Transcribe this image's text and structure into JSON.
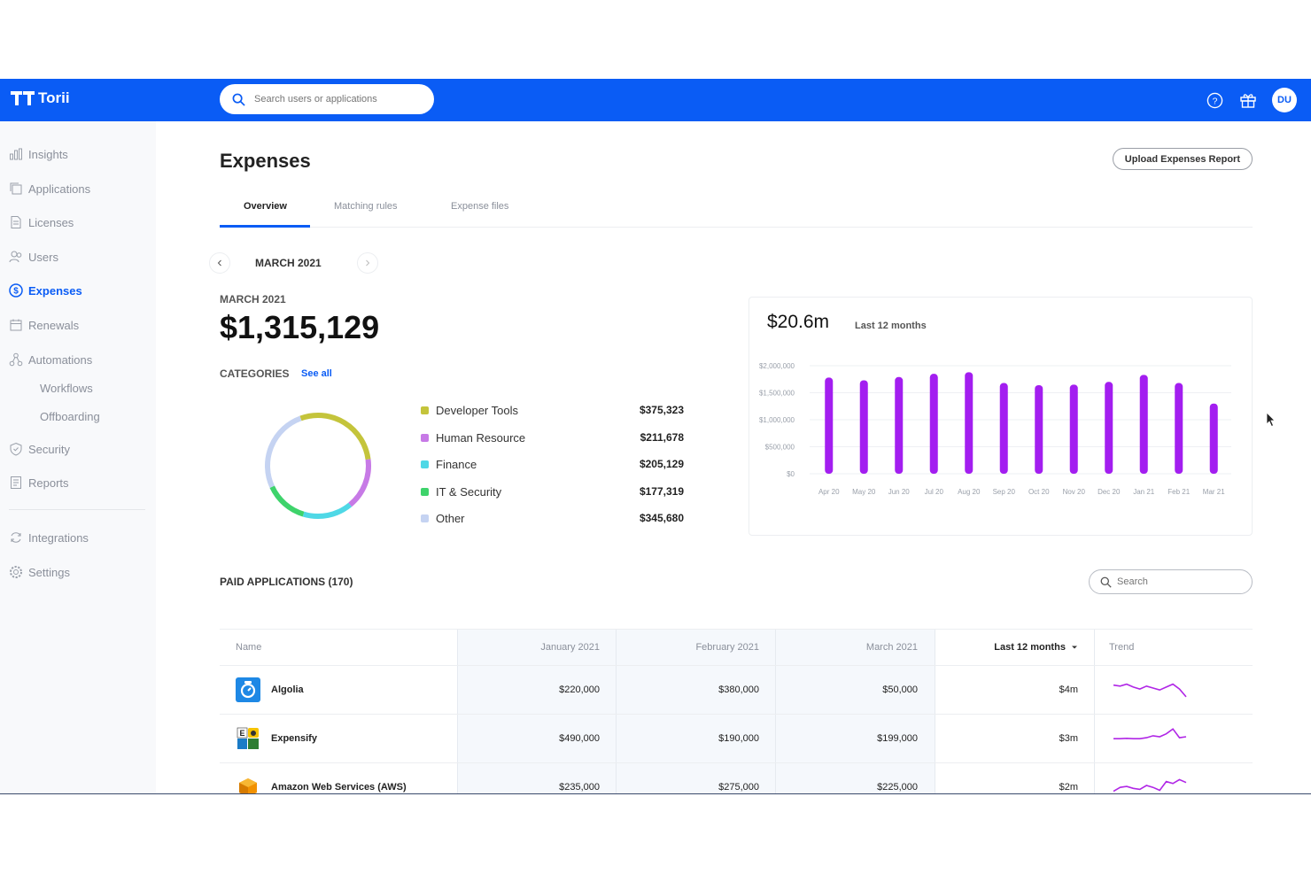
{
  "brand": {
    "name": "Torii"
  },
  "search": {
    "placeholder": "Search users or applications"
  },
  "user": {
    "initials": "DU"
  },
  "sidebar": {
    "items": [
      {
        "label": "Insights",
        "icon": "bar-chart-icon"
      },
      {
        "label": "Applications",
        "icon": "copy-icon"
      },
      {
        "label": "Licenses",
        "icon": "document-icon"
      },
      {
        "label": "Users",
        "icon": "users-icon"
      },
      {
        "label": "Expenses",
        "icon": "dollar-icon",
        "active": true
      },
      {
        "label": "Renewals",
        "icon": "calendar-icon"
      },
      {
        "label": "Automations",
        "icon": "workflow-icon"
      },
      {
        "label": "Workflows",
        "sub": true
      },
      {
        "label": "Offboarding",
        "sub": true
      },
      {
        "label": "Security",
        "icon": "shield-icon"
      },
      {
        "label": "Reports",
        "icon": "report-icon"
      },
      {
        "label": "Integrations",
        "icon": "sync-icon"
      },
      {
        "label": "Settings",
        "icon": "gear-icon"
      }
    ]
  },
  "page": {
    "title": "Expenses",
    "upload_label": "Upload Expenses Report",
    "tabs": [
      "Overview",
      "Matching rules",
      "Expense files"
    ],
    "month": "MARCH 2021"
  },
  "summary": {
    "label": "MARCH 2021",
    "total": "$1,315,129",
    "categories_label": "CATEGORIES",
    "see_all": "See all"
  },
  "categories": [
    {
      "name": "Developer Tools",
      "amount": "$375,323",
      "value": 375323,
      "color": "#c4c43b"
    },
    {
      "name": "Human Resource",
      "amount": "$211,678",
      "value": 211678,
      "color": "#c77ae6"
    },
    {
      "name": "Finance",
      "amount": "$205,129",
      "value": 205129,
      "color": "#4fd8e6"
    },
    {
      "name": "IT & Security",
      "amount": "$177,319",
      "value": 177319,
      "color": "#3ed36b"
    },
    {
      "name": "Other",
      "amount": "$345,680",
      "value": 345680,
      "color": "#c5d3f2"
    }
  ],
  "chart": {
    "total": "$20.6m",
    "subtitle": "Last 12 months"
  },
  "chart_data": {
    "type": "bar",
    "categories": [
      "Apr 20",
      "May 20",
      "Jun 20",
      "Jul 20",
      "Aug 20",
      "Sep 20",
      "Oct 20",
      "Nov 20",
      "Dec 20",
      "Jan 21",
      "Feb 21",
      "Mar 21"
    ],
    "values": [
      1780000,
      1730000,
      1790000,
      1850000,
      1880000,
      1680000,
      1640000,
      1650000,
      1700000,
      1830000,
      1680000,
      1300000
    ],
    "ylim": [
      0,
      2000000
    ],
    "yticks": [
      {
        "value": 2000000,
        "label": "$2,000,000"
      },
      {
        "value": 1500000,
        "label": "$1,500,000"
      },
      {
        "value": 1000000,
        "label": "$1,000,000"
      },
      {
        "value": 500000,
        "label": "$500,000"
      },
      {
        "value": 0,
        "label": "$0"
      }
    ],
    "color": "#a31ef0",
    "grid": true
  },
  "paid": {
    "title": "PAID APPLICATIONS (170)",
    "search_placeholder": "Search",
    "columns": [
      "Name",
      "January 2021",
      "February 2021",
      "March 2021",
      "Last 12 months",
      "Trend"
    ],
    "rows": [
      {
        "name": "Algolia",
        "jan": "$220,000",
        "feb": "$380,000",
        "mar": "$50,000",
        "total": "$4m",
        "icon": "algolia-icon",
        "trend": [
          0.35,
          0.4,
          0.3,
          0.45,
          0.55,
          0.4,
          0.5,
          0.6,
          0.45,
          0.3,
          0.55,
          0.95
        ]
      },
      {
        "name": "Expensify",
        "jan": "$490,000",
        "feb": "$190,000",
        "mar": "$199,000",
        "total": "$3m",
        "icon": "expensify-icon",
        "trend": [
          0.6,
          0.6,
          0.58,
          0.6,
          0.6,
          0.55,
          0.45,
          0.5,
          0.35,
          0.1,
          0.55,
          0.5
        ]
      },
      {
        "name": "Amazon Web Services (AWS)",
        "jan": "$235,000",
        "feb": "$275,000",
        "mar": "$225,000",
        "total": "$2m",
        "icon": "aws-icon",
        "trend": [
          0.8,
          0.6,
          0.55,
          0.65,
          0.7,
          0.5,
          0.6,
          0.75,
          0.3,
          0.4,
          0.2,
          0.35
        ]
      }
    ]
  }
}
